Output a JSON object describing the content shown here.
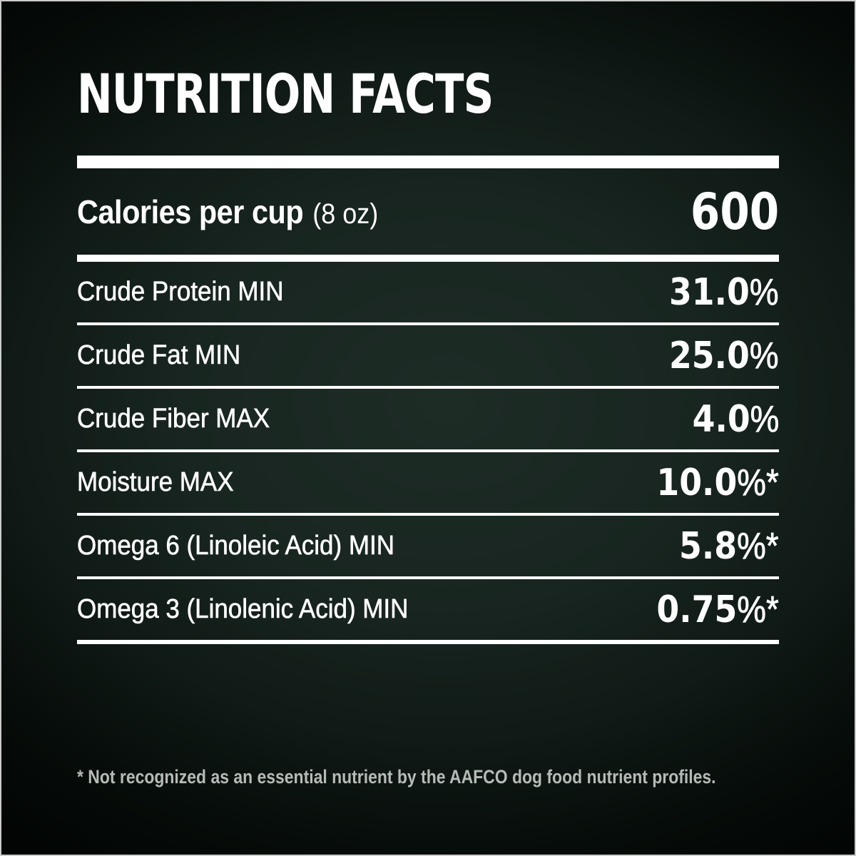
{
  "label": {
    "title": "NUTRITION FACTS",
    "calories": {
      "label": "Calories per cup",
      "note": "(8 oz)",
      "value": "600"
    },
    "footnote": "* Not recognized as an essential nutrient by the AAFCO dog food nutrient profiles."
  },
  "nutrients": [
    {
      "label": "Crude Protein MIN",
      "value": "31.0",
      "unit": "%"
    },
    {
      "label": "Crude Fat MIN",
      "value": "25.0",
      "unit": "%"
    },
    {
      "label": "Crude Fiber MAX",
      "value": "4.0",
      "unit": "%"
    },
    {
      "label": "Moisture MAX",
      "value": "10.0",
      "unit": "%*"
    },
    {
      "label": "Omega 6 (Linoleic Acid) MIN",
      "value": "5.8",
      "unit": "%*"
    },
    {
      "label": "Omega 3 (Linolenic Acid) MIN",
      "value": "0.75",
      "unit": "%*"
    }
  ],
  "colors": {
    "background_center": "#1e2c26",
    "background_edge": "#020504",
    "text": "#ffffff",
    "rule": "#ffffff",
    "footnote_text": "#b7bbb7",
    "frame_border": "#eceeec"
  }
}
